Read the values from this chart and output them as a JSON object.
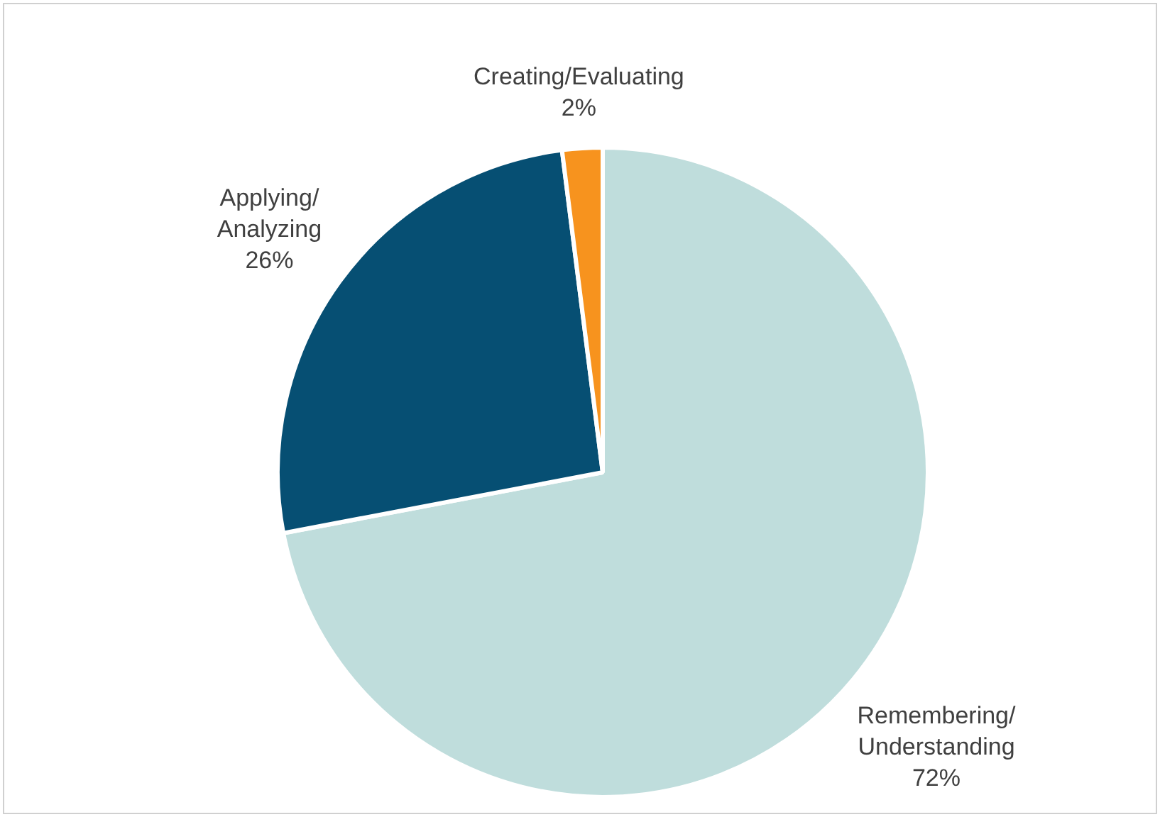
{
  "chart_data": {
    "type": "pie",
    "categories": [
      "Remembering/ Understanding",
      "Applying/ Analyzing",
      "Creating/Evaluating"
    ],
    "values": [
      72,
      26,
      2
    ],
    "colors": [
      "#bfdddc",
      "#064f73",
      "#f7931e"
    ],
    "value_labels": [
      "72%",
      "26%",
      "2%"
    ],
    "legend": false
  }
}
